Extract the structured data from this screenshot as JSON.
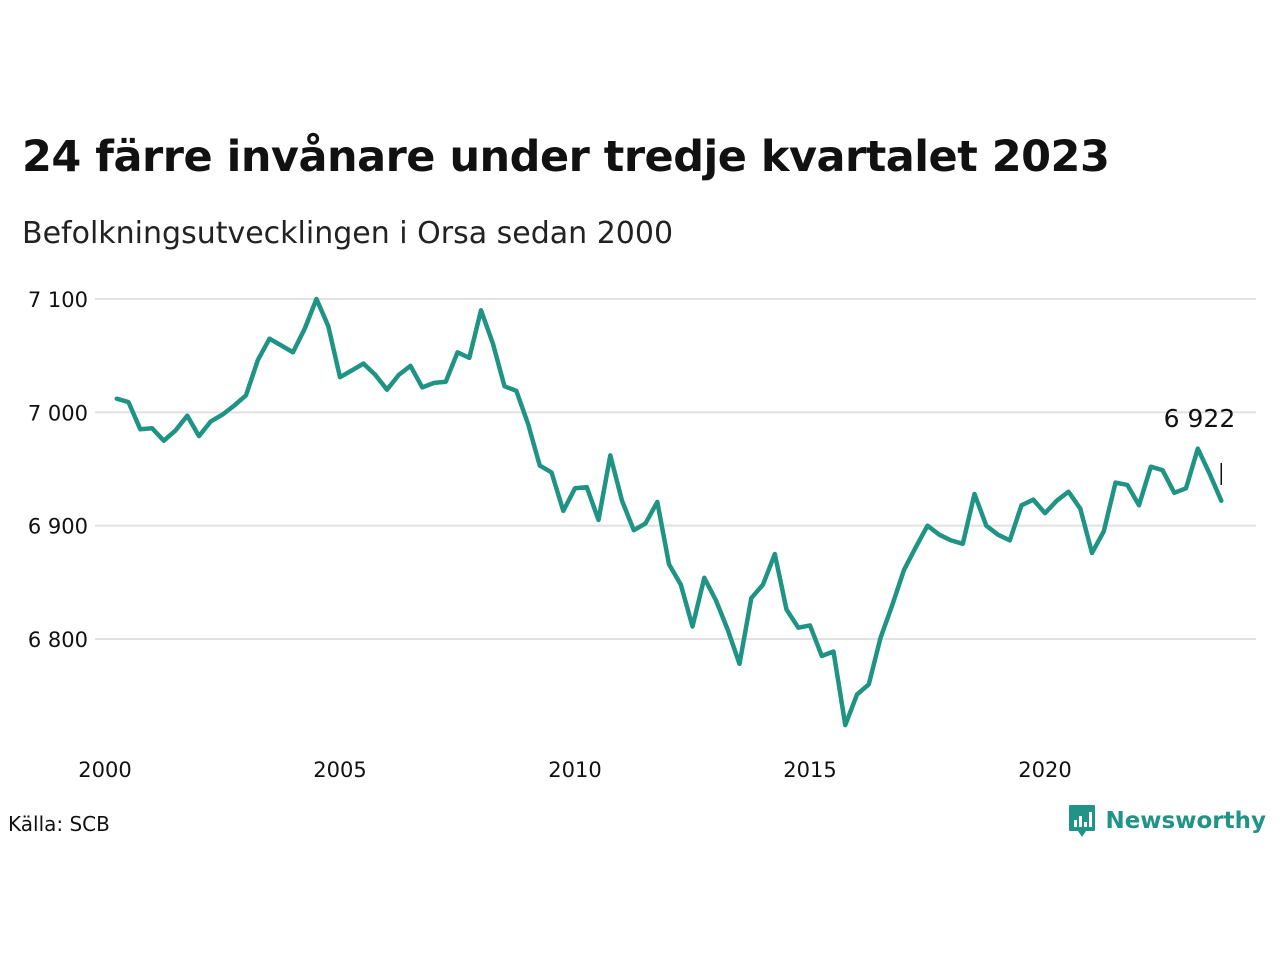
{
  "title": "24 färre invånare under tredje kvartalet 2023",
  "subtitle": "Befolkningsutvecklingen i Orsa sedan 2000",
  "source": "Källa: SCB",
  "brand": {
    "name": "Newsworthy",
    "icon": "newsworthy-logo-icon",
    "color": "#219488"
  },
  "colors": {
    "line": "#1f9484",
    "grid": "#e1e1e1"
  },
  "chart_data": {
    "type": "line",
    "title": "24 färre invånare under tredje kvartalet 2023",
    "subtitle": "Befolkningsutvecklingen i Orsa sedan 2000",
    "xlabel": "",
    "ylabel": "",
    "xlim": [
      2000,
      2024.9
    ],
    "ylim": [
      6720,
      7100
    ],
    "grid": "horizontal",
    "x_ticks": [
      2000,
      2005,
      2010,
      2015,
      2020
    ],
    "x_tick_labels": [
      "2000",
      "2005",
      "2010",
      "2015",
      "2020"
    ],
    "y_ticks": [
      6800,
      6900,
      7000,
      7100
    ],
    "y_tick_labels": [
      "6 800",
      "6 900",
      "7 000",
      "7 100"
    ],
    "end_label": "6 922",
    "series": [
      {
        "x": [
          2000.25,
          2000.5,
          2000.75,
          2001.0,
          2001.25,
          2001.5,
          2001.75,
          2002.0,
          2002.25,
          2002.5,
          2002.75,
          2003.0,
          2003.25,
          2003.5,
          2003.75,
          2004.0,
          2004.25,
          2004.5,
          2004.75,
          2005.0,
          2005.25,
          2005.5,
          2005.75,
          2006.0,
          2006.25,
          2006.5,
          2006.75,
          2007.0,
          2007.25,
          2007.5,
          2007.75,
          2008.0,
          2008.25,
          2008.5,
          2008.75,
          2009.0,
          2009.25,
          2009.5,
          2009.75,
          2010.0,
          2010.25,
          2010.5,
          2010.75,
          2011.0,
          2011.25,
          2011.5,
          2011.75,
          2012.0,
          2012.25,
          2012.5,
          2012.75,
          2013.0,
          2013.25,
          2013.5,
          2013.75,
          2014.0,
          2014.25,
          2014.5,
          2014.75,
          2015.0,
          2015.25,
          2015.5,
          2015.75,
          2016.0,
          2016.25,
          2016.5,
          2016.75,
          2017.0,
          2017.25,
          2017.5,
          2017.75,
          2018.0,
          2018.25,
          2018.5,
          2018.75,
          2019.0,
          2019.25,
          2019.5,
          2019.75,
          2020.0,
          2020.25,
          2020.5,
          2020.75,
          2021.0,
          2021.25,
          2021.5,
          2021.75,
          2022.0,
          2022.25,
          2022.5,
          2022.75,
          2023.0,
          2023.25,
          2023.5,
          2023.75
        ],
        "values": [
          7012,
          7009,
          6985,
          6986,
          6975,
          6984,
          6997,
          6979,
          6992,
          6998,
          7006,
          7015,
          7046,
          7065,
          7059,
          7053,
          7074,
          7100,
          7076,
          7031,
          7037,
          7043,
          7033,
          7020,
          7033,
          7041,
          7022,
          7026,
          7027,
          7053,
          7048,
          7090,
          7061,
          7023,
          7019,
          6990,
          6953,
          6947,
          6913,
          6933,
          6934,
          6905,
          6962,
          6922,
          6896,
          6902,
          6921,
          6866,
          6848,
          6811,
          6854,
          6834,
          6808,
          6778,
          6836,
          6848,
          6875,
          6826,
          6810,
          6812,
          6785,
          6789,
          6724,
          6751,
          6760,
          6801,
          6830,
          6861,
          6881,
          6900,
          6892,
          6887,
          6884,
          6928,
          6900,
          6892,
          6887,
          6918,
          6923,
          6911,
          6922,
          6930,
          6915,
          6876,
          6895,
          6938,
          6936,
          6918,
          6952,
          6949,
          6929,
          6933,
          6968,
          6946,
          6922
        ]
      }
    ]
  }
}
